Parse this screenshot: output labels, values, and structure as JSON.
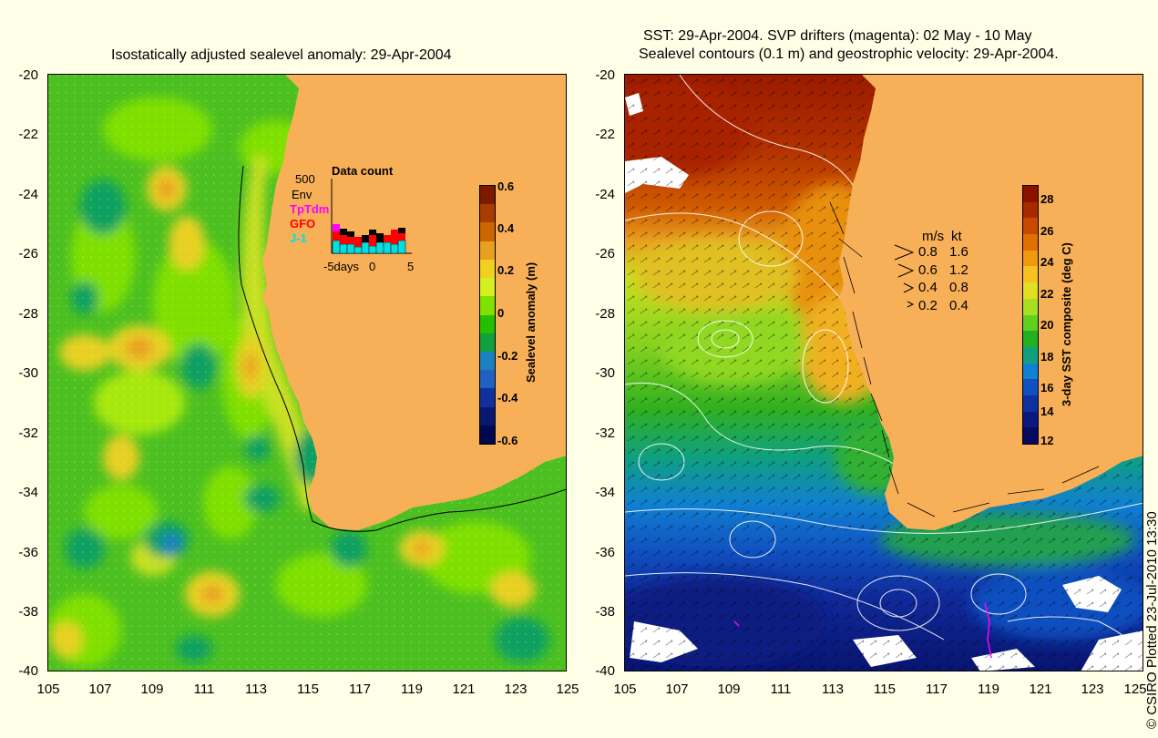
{
  "left_panel": {
    "title": "Isostatically adjusted sealevel anomaly: 29-Apr-2004",
    "y_ticks": [
      "-20",
      "-22",
      "-24",
      "-26",
      "-28",
      "-30",
      "-32",
      "-34",
      "-36",
      "-38",
      "-40"
    ],
    "x_ticks": [
      "105",
      "107",
      "109",
      "111",
      "113",
      "115",
      "117",
      "119",
      "121",
      "123",
      "125"
    ],
    "colorbar": {
      "label": "Sealevel anomaly (m)",
      "ticks": [
        "0.6",
        "0.4",
        "0.2",
        "0",
        "-0.2",
        "-0.4",
        "-0.6"
      ],
      "colors": [
        "#7a1a00",
        "#a83c00",
        "#cc6600",
        "#e8a020",
        "#f0d020",
        "#d4f020",
        "#80e000",
        "#22c000",
        "#10a040",
        "#1a80c0",
        "#2060c0",
        "#1030a0",
        "#081870",
        "#000850"
      ]
    },
    "data_count": {
      "title": "Data count",
      "scale_label": "500",
      "legend": [
        {
          "name": "Env",
          "color": "#000000"
        },
        {
          "name": "TpTdm",
          "color": "#ff00ff"
        },
        {
          "name": "GFO",
          "color": "#ff0000"
        },
        {
          "name": "J-1",
          "color": "#00e0e0"
        }
      ],
      "x_ticks": [
        "-5days",
        "0",
        "5"
      ]
    }
  },
  "right_panel": {
    "title_line1": "SST: 29-Apr-2004. SVP drifters (magenta): 02 May - 10 May",
    "title_line2": "Sealevel contours (0.1 m) and geostrophic velocity: 29-Apr-2004.",
    "y_ticks": [
      "-20",
      "-22",
      "-24",
      "-26",
      "-28",
      "-30",
      "-32",
      "-34",
      "-36",
      "-38",
      "-40"
    ],
    "x_ticks": [
      "105",
      "107",
      "109",
      "111",
      "113",
      "115",
      "117",
      "119",
      "121",
      "123",
      "125"
    ],
    "colorbar": {
      "label": "3-day SST composite (deg C)",
      "ticks": [
        "28",
        "26",
        "24",
        "22",
        "20",
        "18",
        "16",
        "14",
        "12"
      ],
      "colors": [
        "#8c1000",
        "#a82800",
        "#c84800",
        "#e07000",
        "#f09a10",
        "#f8c020",
        "#e0e020",
        "#a8e020",
        "#60d020",
        "#20b020",
        "#10a080",
        "#1080d0",
        "#1050c0",
        "#1030a0",
        "#0a1880",
        "#050a60"
      ]
    },
    "velocity_legend": {
      "header_ms": "m/s",
      "header_kt": "kt",
      "rows": [
        {
          "ms": "0.8",
          "kt": "1.6"
        },
        {
          "ms": "0.6",
          "kt": "1.2"
        },
        {
          "ms": "0.4",
          "kt": "0.8"
        },
        {
          "ms": "0.2",
          "kt": "0.4"
        }
      ]
    }
  },
  "credit": "© CSIRO Plotted 23-Jul-2010 13:30",
  "colors": {
    "background": "#ffffe8",
    "land": "#f8b058"
  }
}
